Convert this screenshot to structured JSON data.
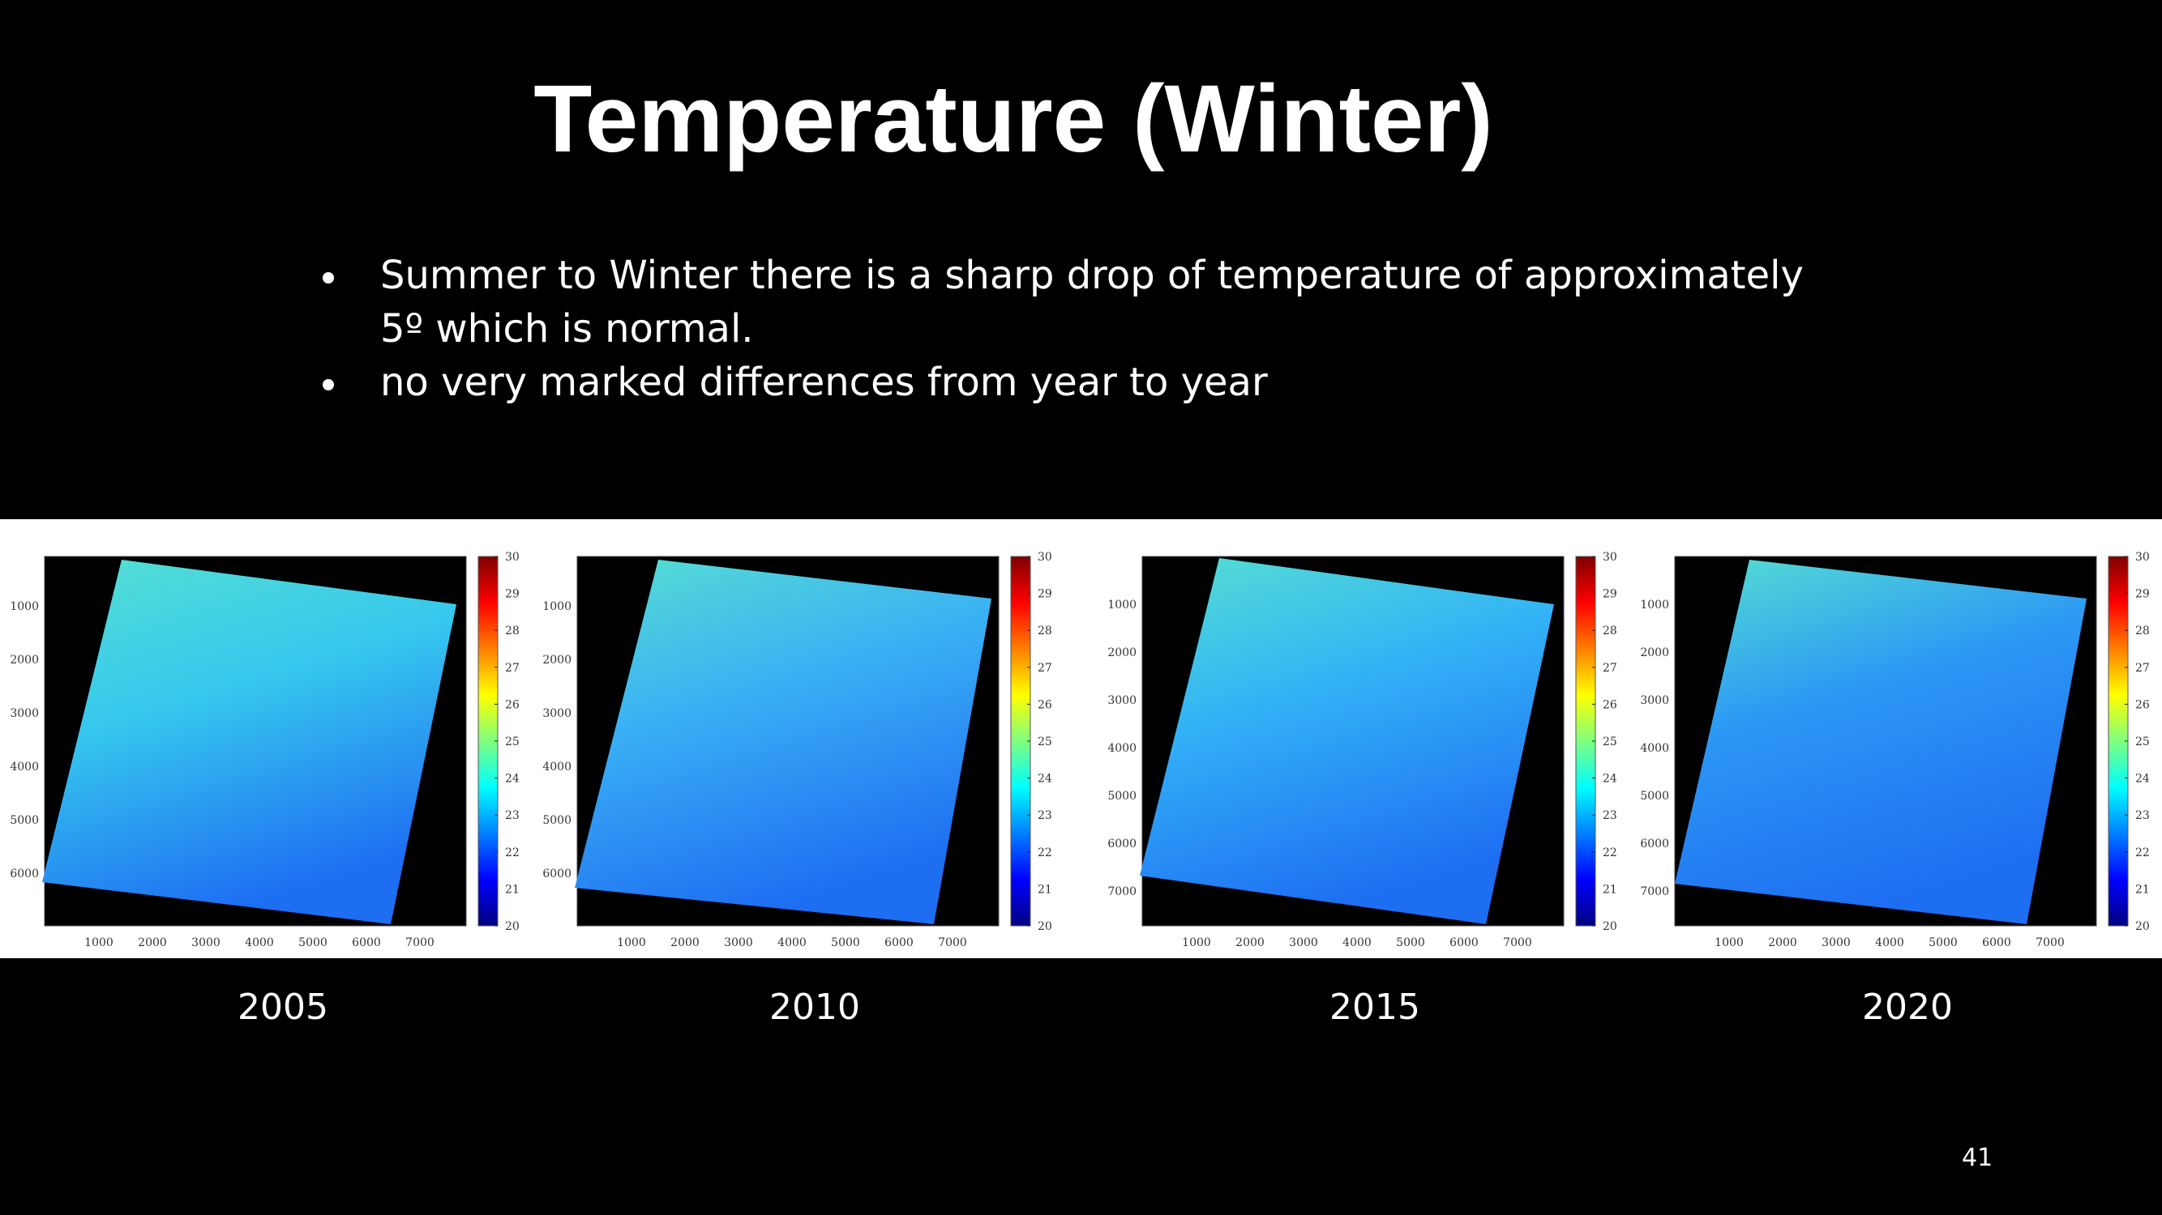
{
  "slide": {
    "title": "Temperature (Winter)",
    "bullets": [
      "Summer to Winter there is a sharp drop of temperature of approximately 5º which is normal.",
      "no very marked differences from year to year"
    ],
    "page_number": "41"
  },
  "colorbar": {
    "min": 20,
    "max": 30,
    "ticks": [
      "30",
      "29",
      "28",
      "27",
      "26",
      "25",
      "24",
      "23",
      "22",
      "21",
      "20"
    ],
    "colormap": "jet"
  },
  "maps": [
    {
      "year": "2005",
      "x_ticks": [
        "1000",
        "2000",
        "3000",
        "4000",
        "5000",
        "6000",
        "7000"
      ],
      "y_ticks": [
        "1000",
        "2000",
        "3000",
        "4000",
        "5000",
        "6000"
      ]
    },
    {
      "year": "2010",
      "x_ticks": [
        "1000",
        "2000",
        "3000",
        "4000",
        "5000",
        "6000",
        "7000"
      ],
      "y_ticks": [
        "1000",
        "2000",
        "3000",
        "4000",
        "5000",
        "6000"
      ]
    },
    {
      "year": "2015",
      "x_ticks": [
        "1000",
        "2000",
        "3000",
        "4000",
        "5000",
        "6000",
        "7000"
      ],
      "y_ticks": [
        "1000",
        "2000",
        "3000",
        "4000",
        "5000",
        "6000",
        "7000"
      ]
    },
    {
      "year": "2020",
      "x_ticks": [
        "1000",
        "2000",
        "3000",
        "4000",
        "5000",
        "6000",
        "7000"
      ],
      "y_ticks": [
        "1000",
        "2000",
        "3000",
        "4000",
        "5000",
        "6000",
        "7000"
      ]
    }
  ]
}
